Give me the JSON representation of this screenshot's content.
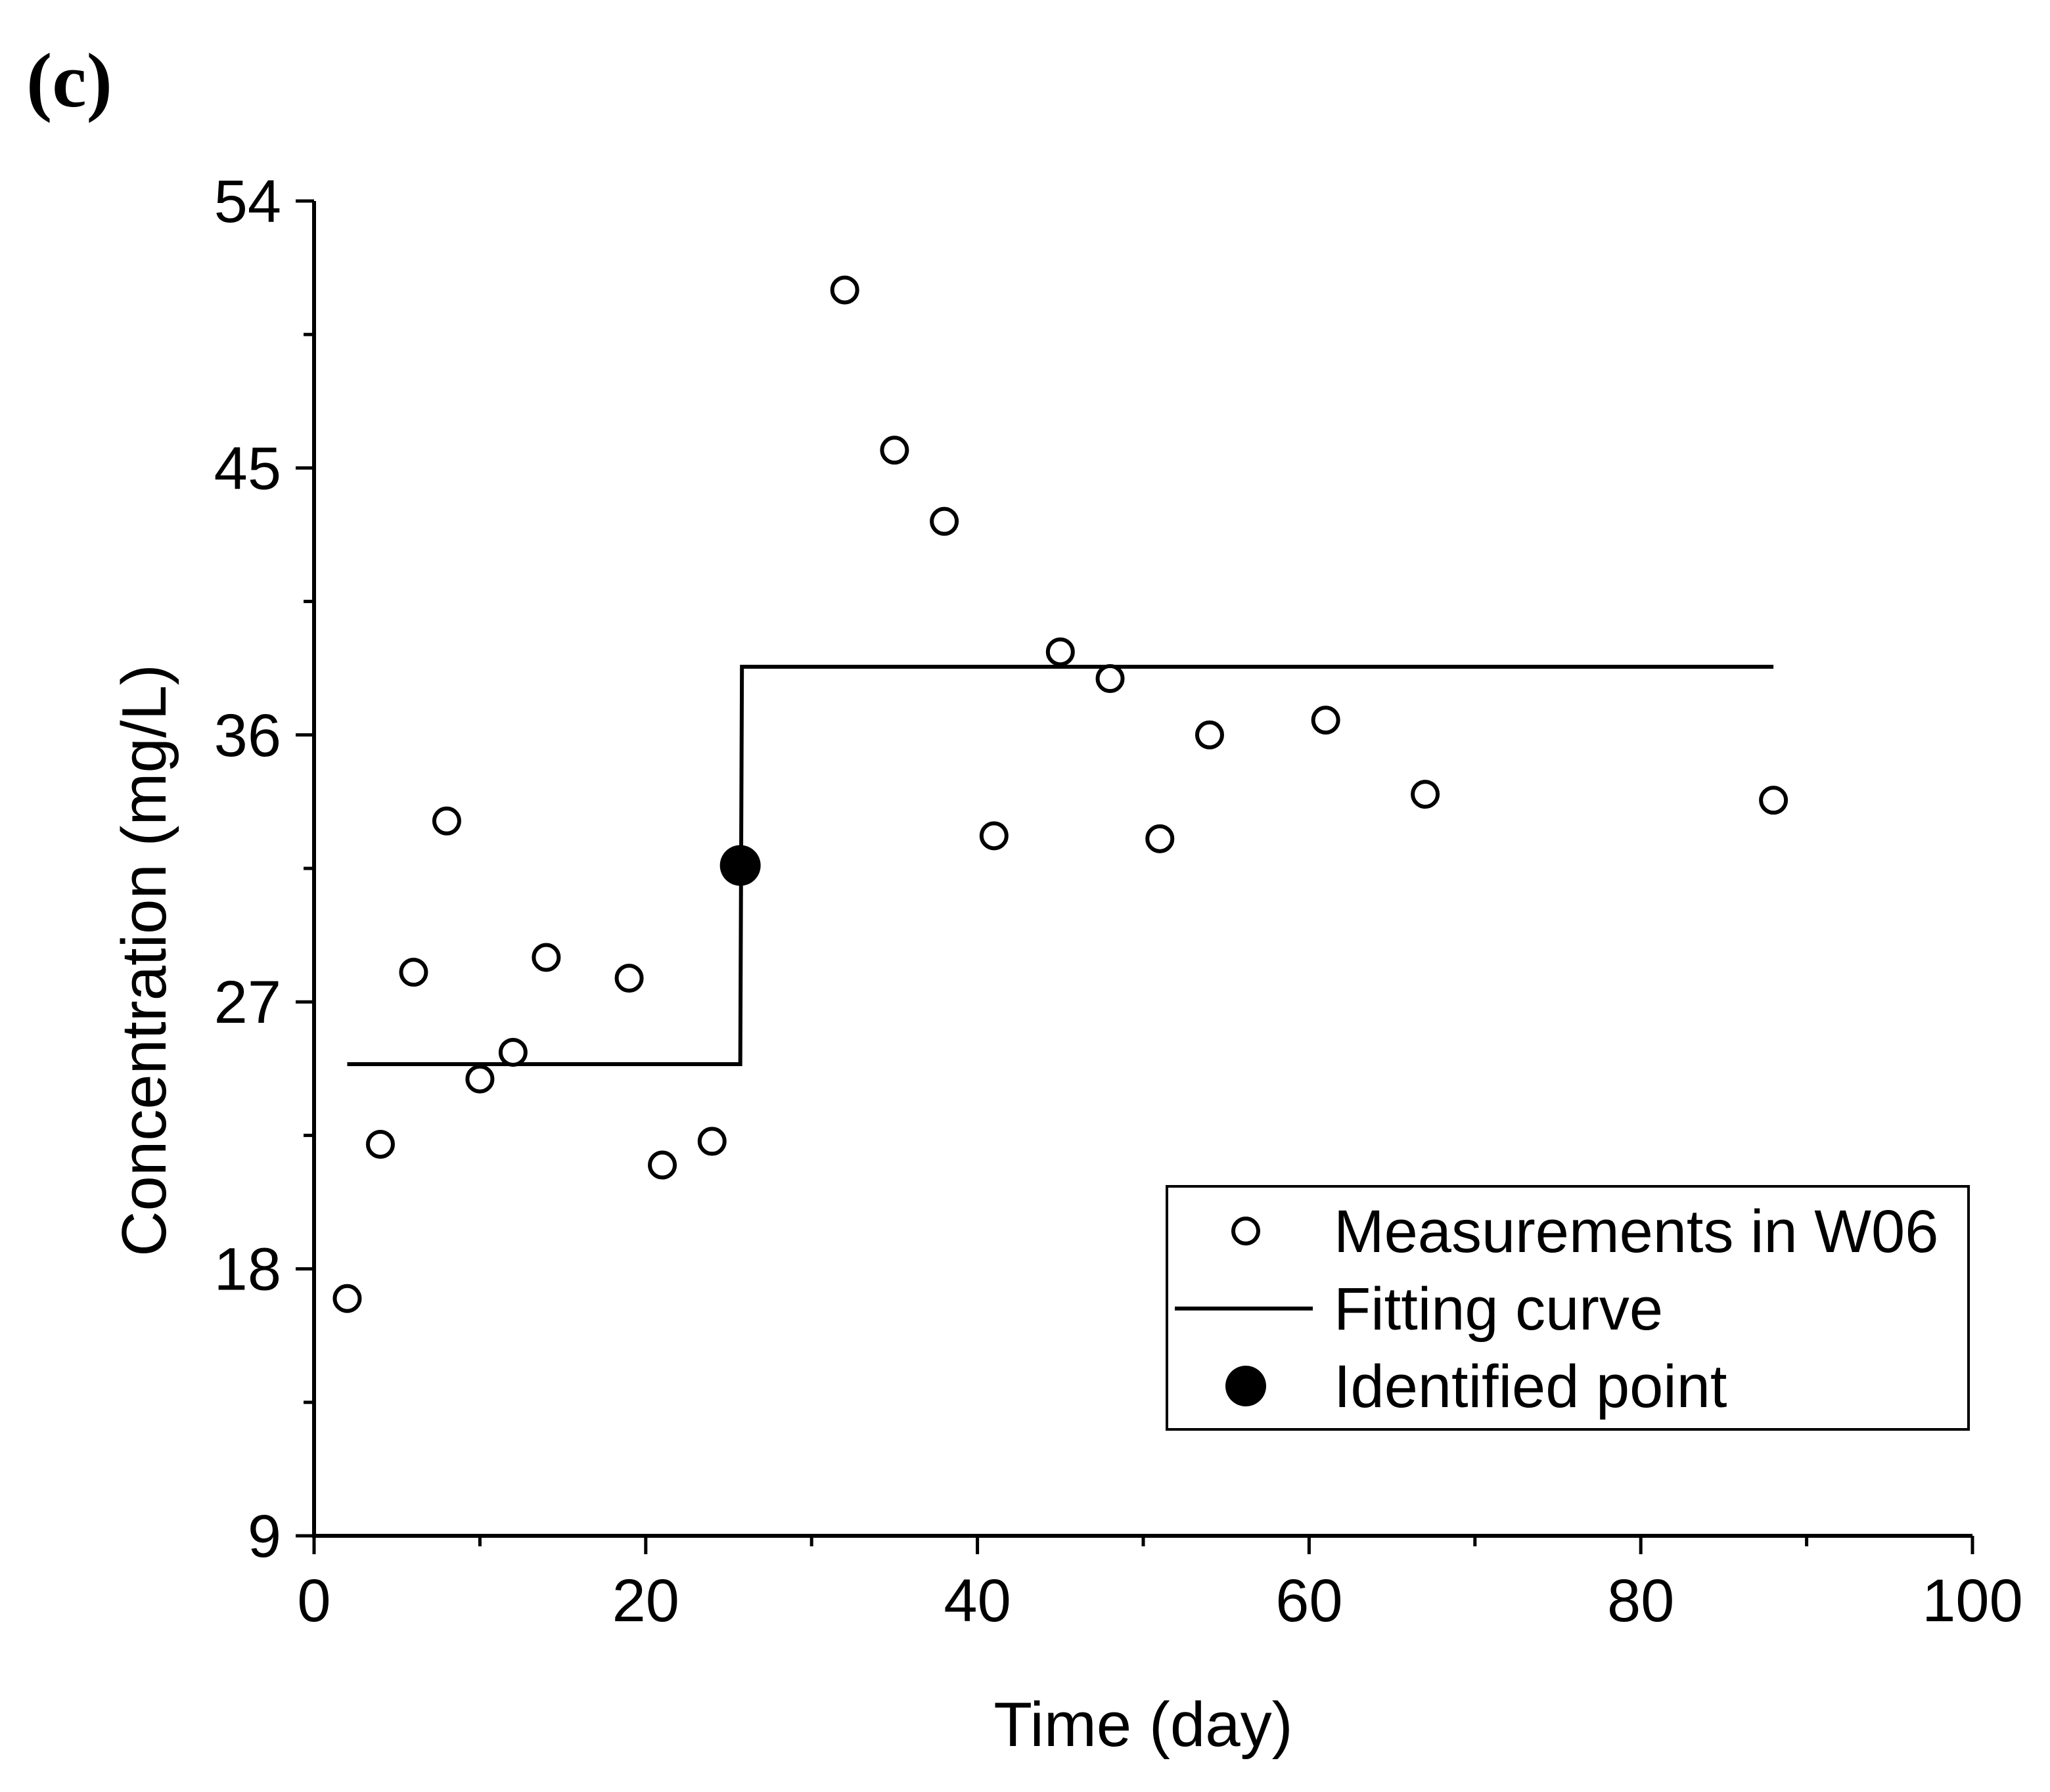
{
  "panel_label": "(c)",
  "chart_data": {
    "type": "scatter",
    "title": "",
    "xlabel": "Time  (day)",
    "ylabel": "Concentration  (mg/L)",
    "xlim": [
      0,
      100
    ],
    "ylim": [
      9,
      54
    ],
    "x_ticks": [
      0,
      20,
      40,
      60,
      80,
      100
    ],
    "x_tick_labels": [
      "0",
      "20",
      "40",
      "60",
      "80",
      "100"
    ],
    "x_minor_ticks": [
      10,
      30,
      50,
      70,
      90
    ],
    "y_ticks": [
      9,
      18,
      27,
      36,
      45,
      54
    ],
    "y_tick_labels": [
      "9",
      "18",
      "27",
      "36",
      "45",
      "54"
    ],
    "y_minor_ticks": [
      13.5,
      22.5,
      31.5,
      40.5,
      49.5
    ],
    "grid": false,
    "legend_position": "bottom-right",
    "series": [
      {
        "name": "Measurements in W06",
        "kind": "scatter",
        "marker": "open-circle",
        "points": [
          {
            "x": 2,
            "y": 17.0
          },
          {
            "x": 4,
            "y": 22.2
          },
          {
            "x": 6,
            "y": 28.0
          },
          {
            "x": 8,
            "y": 33.1
          },
          {
            "x": 10,
            "y": 24.4
          },
          {
            "x": 12,
            "y": 25.3
          },
          {
            "x": 14,
            "y": 28.5
          },
          {
            "x": 19,
            "y": 27.8
          },
          {
            "x": 21,
            "y": 21.5
          },
          {
            "x": 24,
            "y": 22.3
          },
          {
            "x": 32,
            "y": 51.0
          },
          {
            "x": 35,
            "y": 45.6
          },
          {
            "x": 38,
            "y": 43.2
          },
          {
            "x": 41,
            "y": 32.6
          },
          {
            "x": 45,
            "y": 38.8
          },
          {
            "x": 48,
            "y": 37.9
          },
          {
            "x": 51,
            "y": 32.5
          },
          {
            "x": 54,
            "y": 36.0
          },
          {
            "x": 61,
            "y": 36.5
          },
          {
            "x": 67,
            "y": 34.0
          },
          {
            "x": 88,
            "y": 33.8
          }
        ]
      },
      {
        "name": "Fitting curve",
        "kind": "step-line",
        "color": "#000000",
        "points": [
          {
            "x": 2,
            "y": 24.9
          },
          {
            "x": 25.7,
            "y": 24.9
          },
          {
            "x": 25.8,
            "y": 38.3
          },
          {
            "x": 88,
            "y": 38.3
          }
        ]
      },
      {
        "name": "Identified point",
        "kind": "scatter",
        "marker": "filled-circle",
        "color": "#000000",
        "points": [
          {
            "x": 25.7,
            "y": 31.6
          }
        ]
      }
    ]
  }
}
